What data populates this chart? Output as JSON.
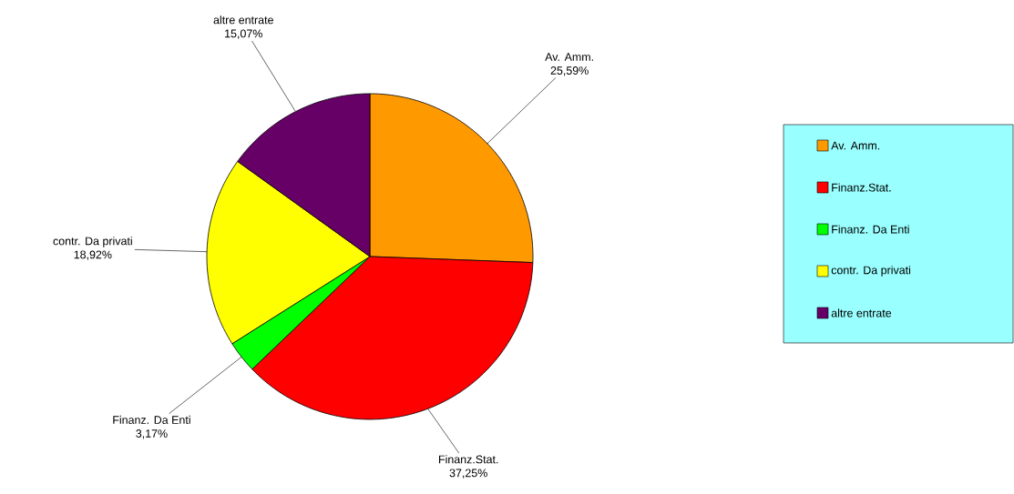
{
  "chart_data": {
    "type": "pie",
    "categories": [
      "Av. Amm.",
      "Finanz.Stat.",
      "Finanz. Da Enti",
      "contr. Da privati",
      "altre entrate"
    ],
    "values": [
      25.59,
      37.25,
      3.17,
      18.92,
      15.07
    ],
    "colors": [
      "#ff9900",
      "#ff0000",
      "#00ff00",
      "#ffff00",
      "#660066"
    ],
    "value_labels": [
      "25,59%",
      "37,25%",
      "3,17%",
      "18,92%",
      "15,07%"
    ],
    "legend": "right"
  }
}
